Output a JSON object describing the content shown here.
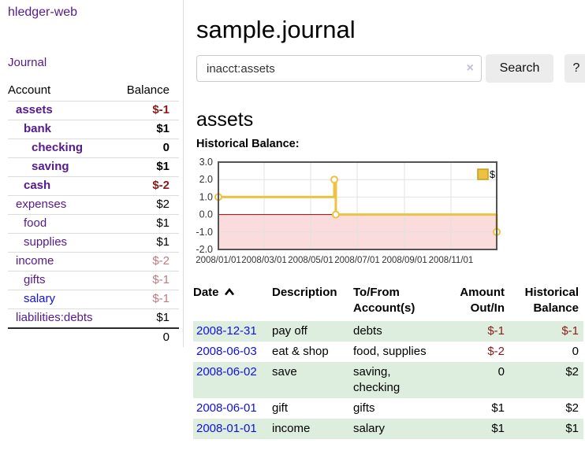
{
  "sidebar": {
    "brand": "hledger-web",
    "journal_link": "Journal",
    "accounts": {
      "headers": {
        "account": "Account",
        "balance": "Balance"
      },
      "rows": [
        {
          "account": "assets",
          "indent": 0,
          "bold": true,
          "balance": "$-1",
          "balance_class": "neg-strong"
        },
        {
          "account": "bank",
          "indent": 1,
          "bold": true,
          "balance": "$1",
          "balance_class": "pos"
        },
        {
          "account": "checking",
          "indent": 2,
          "bold": true,
          "balance": "0",
          "balance_class": "pos"
        },
        {
          "account": "saving",
          "indent": 2,
          "bold": true,
          "balance": "$1",
          "balance_class": "pos"
        },
        {
          "account": "cash",
          "indent": 1,
          "bold": true,
          "balance": "$-2",
          "balance_class": "neg-strong"
        },
        {
          "account": "expenses",
          "indent": 0,
          "bold": false,
          "balance": "$2",
          "balance_class": "pos"
        },
        {
          "account": "food",
          "indent": 1,
          "bold": false,
          "balance": "$1",
          "balance_class": "pos"
        },
        {
          "account": "supplies",
          "indent": 1,
          "bold": false,
          "balance": "$1",
          "balance_class": "pos"
        },
        {
          "account": "income",
          "indent": 0,
          "bold": false,
          "balance": "$-2",
          "balance_class": "neg-faded"
        },
        {
          "account": "gifts",
          "indent": 1,
          "bold": false,
          "balance": "$-1",
          "balance_class": "neg-faded"
        },
        {
          "account": "salary",
          "indent": 1,
          "bold": false,
          "balance": "$-1",
          "balance_class": "neg-faded",
          "unvisited": true
        },
        {
          "account": "liabilities:debts",
          "indent": 0,
          "bold": false,
          "balance": "$1",
          "balance_class": "pos"
        }
      ],
      "total": "0"
    }
  },
  "main": {
    "title": "sample.journal",
    "search": {
      "value": "inacct:assets",
      "clear_icon": "×",
      "search_button": "Search",
      "help_button": "?"
    },
    "section_title": "assets"
  },
  "chart_data": {
    "type": "line",
    "step": true,
    "title": "Historical Balance:",
    "x_start": "2008-01-01",
    "x_end": "2008-12-31",
    "ylim": [
      -2,
      3
    ],
    "y_ticks": [
      3.0,
      2.0,
      1.0,
      0.0,
      -1.0,
      -2.0
    ],
    "x_ticks": [
      "2008/01/01",
      "2008/03/01",
      "2008/05/01",
      "2008/07/01",
      "2008/09/01",
      "2008/11/01"
    ],
    "series": [
      {
        "name": "$",
        "color": "#edc240",
        "points": [
          [
            "2008-01-01",
            1
          ],
          [
            "2008-06-01",
            2
          ],
          [
            "2008-06-03",
            0
          ],
          [
            "2008-12-31",
            -1
          ]
        ]
      }
    ],
    "grid": true,
    "legend_position": "top-right",
    "colors": {
      "negative_region_fill": "#fadcdc",
      "zero_line": "#9b0000",
      "plot_border": "#545454",
      "gridline": "#e2e2e2",
      "tick_text": "#333333",
      "legend_swatch_border": "#c29d25"
    }
  },
  "register_table": {
    "headers": {
      "date": "Date",
      "description": "Description",
      "accounts": "To/From Account(s)",
      "amount": "Amount Out/In",
      "balance": "Historical Balance"
    },
    "sort_icon": "chevron-up",
    "rows": [
      {
        "date": "2008-12-31",
        "description": "pay off",
        "accounts": "debts",
        "amount": "$-1",
        "amount_neg": true,
        "balance": "$-1",
        "balance_neg": true
      },
      {
        "date": "2008-06-03",
        "description": "eat & shop",
        "accounts": "food, supplies",
        "amount": "$-2",
        "amount_neg": true,
        "balance": "0",
        "balance_neg": false
      },
      {
        "date": "2008-06-02",
        "description": "save",
        "accounts": "saving,\nchecking",
        "amount": "0",
        "amount_neg": false,
        "balance": "$2",
        "balance_neg": false
      },
      {
        "date": "2008-06-01",
        "description": "gift",
        "accounts": "gifts",
        "amount": "$1",
        "amount_neg": false,
        "balance": "$2",
        "balance_neg": false
      },
      {
        "date": "2008-01-01",
        "description": "income",
        "accounts": "salary",
        "amount": "$1",
        "amount_neg": false,
        "balance": "$1",
        "balance_neg": false
      }
    ]
  }
}
